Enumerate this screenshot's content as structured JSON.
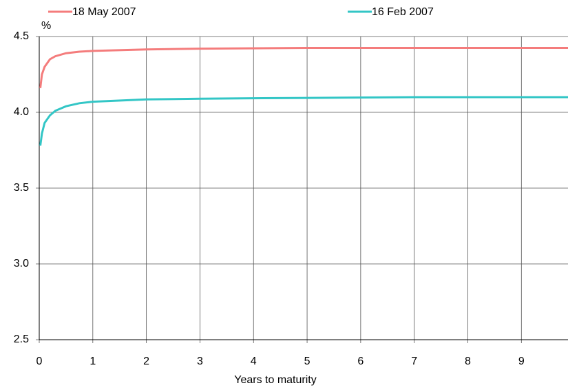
{
  "chart_data": {
    "type": "line",
    "y_unit": "%",
    "xlabel": "Years to maturity",
    "x": [
      0.02,
      0.05,
      0.1,
      0.2,
      0.3,
      0.5,
      0.75,
      1,
      2,
      3,
      5,
      7,
      9.87
    ],
    "series": [
      {
        "name": "18 May 2007",
        "color": "#f47c7c",
        "values": [
          4.16,
          4.25,
          4.3,
          4.35,
          4.37,
          4.39,
          4.4,
          4.405,
          4.415,
          4.42,
          4.425,
          4.425,
          4.425
        ]
      },
      {
        "name": "16 Feb 2007",
        "color": "#33c6c6",
        "values": [
          3.78,
          3.86,
          3.93,
          3.98,
          4.01,
          4.04,
          4.06,
          4.07,
          4.085,
          4.09,
          4.095,
          4.1,
          4.1
        ]
      }
    ],
    "xlim": [
      0,
      9.87
    ],
    "xticks": [
      0,
      1,
      2,
      3,
      4,
      5,
      6,
      7,
      8,
      9
    ],
    "ylim": [
      2.5,
      4.5
    ],
    "yticks": [
      2.5,
      {
        "value": 3,
        "label": "3.0"
      },
      3.5,
      {
        "value": 4,
        "label": "4.0"
      },
      4.5
    ],
    "grid": true
  }
}
